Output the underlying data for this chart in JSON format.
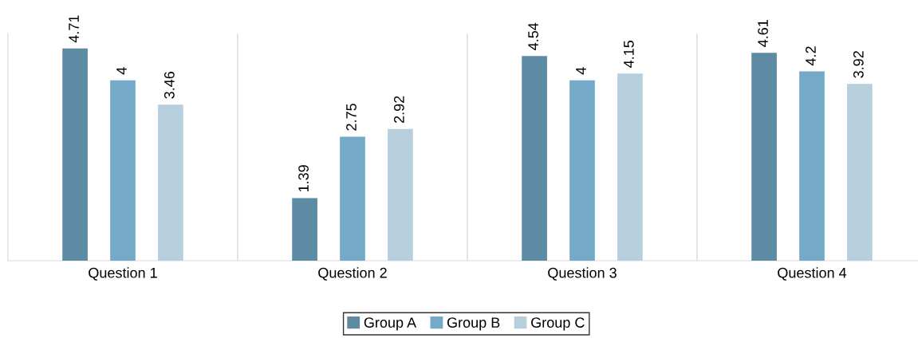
{
  "chart_data": {
    "type": "bar",
    "categories": [
      "Question 1",
      "Question 2",
      "Question 3",
      "Question 4"
    ],
    "series": [
      {
        "name": "Group A",
        "color": "#5d8ba3",
        "values": [
          4.71,
          1.39,
          4.54,
          4.61
        ]
      },
      {
        "name": "Group B",
        "color": "#74a9c8",
        "values": [
          4,
          2.75,
          4,
          4.2
        ]
      },
      {
        "name": "Group C",
        "color": "#b7cfdd",
        "values": [
          3.46,
          2.92,
          4.15,
          3.92
        ]
      }
    ],
    "data_labels": true,
    "legend": "bottom",
    "grid": false
  }
}
